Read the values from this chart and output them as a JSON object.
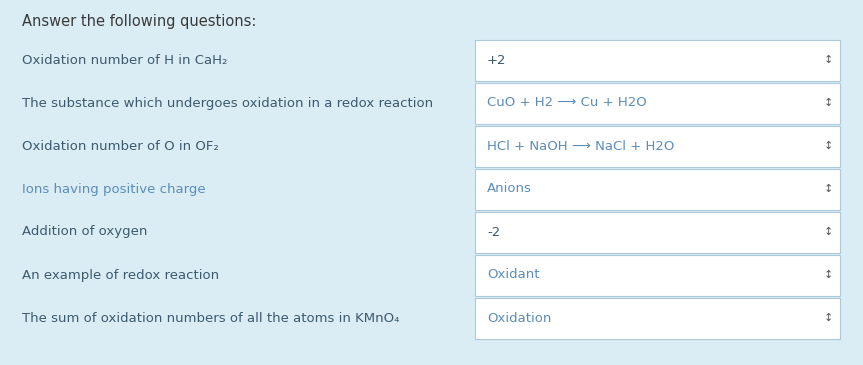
{
  "title": "Answer the following questions:",
  "bg_color": "#daedf5",
  "box_bg_color": "#ffffff",
  "box_border_color": "#adc8d8",
  "title_color": "#3a3a3a",
  "question_color": "#3d5a6e",
  "answer_dark_color": "#3d5a6e",
  "answer_blue_color": "#5b8db8",
  "ions_question_color": "#5b8db8",
  "figsize": [
    8.63,
    3.65
  ],
  "dpi": 100,
  "questions": [
    "Oxidation number of H in CaH₂",
    "The substance which undergoes oxidation in a redox reaction",
    "Oxidation number of O in OF₂",
    "Ions having positive charge",
    "Addition of oxygen",
    "An example of redox reaction",
    "The sum of oxidation numbers of all the atoms in KMnO₄"
  ],
  "question_colors": [
    "#3d5a6e",
    "#3d5a6e",
    "#3d5a6e",
    "#5b8db8",
    "#3d5a6e",
    "#3d5a6e",
    "#3d5a6e"
  ],
  "answers": [
    "+2",
    "CuO + H2 ⟶ Cu + H2O",
    "HCl + NaOH ⟶ NaCl + H2O",
    "Anions",
    "-2",
    "Oxidant",
    "Oxidation"
  ],
  "answer_colors": [
    "#3d5a6e",
    "#5b8db8",
    "#5b8db8",
    "#5b8db8",
    "#3d5a6e",
    "#5b8db8",
    "#5b8db8"
  ]
}
